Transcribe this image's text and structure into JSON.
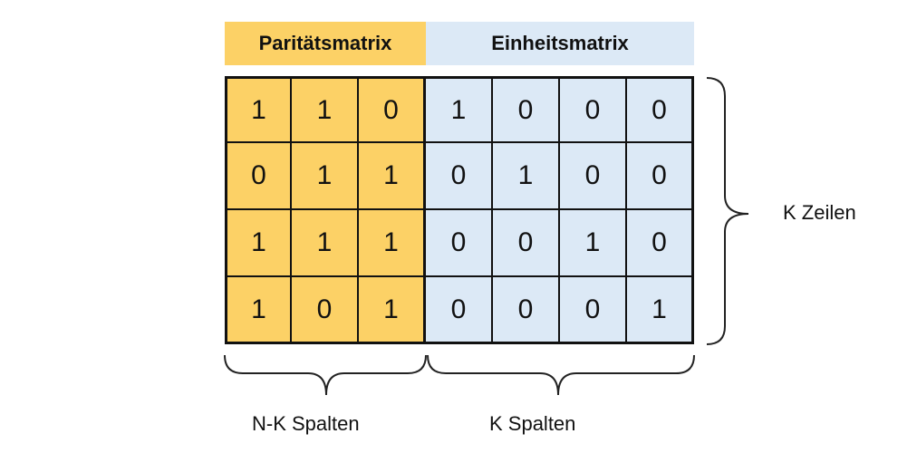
{
  "headers": {
    "parity": "Paritätsmatrix",
    "identity": "Einheitsmatrix"
  },
  "matrix": {
    "rows": [
      [
        "1",
        "1",
        "0",
        "1",
        "0",
        "0",
        "0"
      ],
      [
        "0",
        "1",
        "1",
        "0",
        "1",
        "0",
        "0"
      ],
      [
        "1",
        "1",
        "1",
        "0",
        "0",
        "1",
        "0"
      ],
      [
        "1",
        "0",
        "1",
        "0",
        "0",
        "0",
        "1"
      ]
    ],
    "parity_columns": 3
  },
  "labels": {
    "rows": "K Zeilen",
    "parity_columns": "N-K Spalten",
    "identity_columns": "K Spalten"
  },
  "colors": {
    "parity": "#fcd166",
    "identity": "#dce9f6"
  }
}
